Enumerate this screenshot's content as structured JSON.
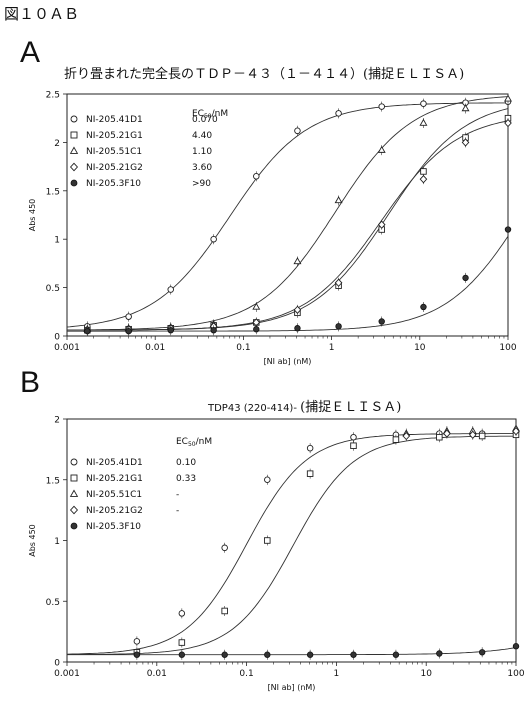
{
  "figure_title": "図１０ＡＢ",
  "chart_data": [
    {
      "panel": "A",
      "type": "scatter",
      "title": "折り畳まれた完全長のＴＤＰ－４３（１－４１４）(捕捉ＥＬＩＳＡ)",
      "xlabel": "[NI ab] (nM)",
      "ylabel": "Abs 450",
      "xscale": "log",
      "xlim": [
        0.001,
        100
      ],
      "ylim": [
        0,
        2.5
      ],
      "xticks": [
        "0.001",
        "0.01",
        "0.1",
        "1",
        "10",
        "100"
      ],
      "yticks": [
        "0",
        "0.5",
        "1",
        "1.5",
        "2",
        "2.5"
      ],
      "grid": false,
      "legend_position": "top-left",
      "legend_header": "EC50/nM",
      "series": [
        {
          "name": "NI-205.41D1",
          "ec50": "0.070",
          "marker": "circle",
          "x": [
            0.0017,
            0.005,
            0.015,
            0.046,
            0.14,
            0.41,
            1.2,
            3.7,
            11,
            33,
            100
          ],
          "y": [
            0.1,
            0.2,
            0.48,
            1.0,
            1.65,
            2.12,
            2.3,
            2.37,
            2.4,
            2.41,
            2.42
          ],
          "fit": {
            "bottom": 0.06,
            "top": 2.41,
            "ec50": 0.07,
            "hill": 1.0
          }
        },
        {
          "name": "NI-205.21G1",
          "ec50": "4.40",
          "marker": "square",
          "x": [
            0.0017,
            0.005,
            0.015,
            0.046,
            0.14,
            0.41,
            1.2,
            3.7,
            11,
            33,
            100
          ],
          "y": [
            0.06,
            0.07,
            0.08,
            0.11,
            0.14,
            0.24,
            0.52,
            1.1,
            1.7,
            2.05,
            2.25
          ],
          "fit": {
            "bottom": 0.06,
            "top": 2.45,
            "ec50": 4.4,
            "hill": 1.0
          }
        },
        {
          "name": "NI-205.51C1",
          "ec50": "1.10",
          "marker": "triangle",
          "x": [
            0.0017,
            0.005,
            0.015,
            0.046,
            0.14,
            0.41,
            1.2,
            3.7,
            11,
            33,
            100
          ],
          "y": [
            0.07,
            0.08,
            0.09,
            0.12,
            0.3,
            0.77,
            1.4,
            1.92,
            2.2,
            2.35,
            2.45
          ],
          "fit": {
            "bottom": 0.06,
            "top": 2.5,
            "ec50": 1.1,
            "hill": 1.0
          }
        },
        {
          "name": "NI-205.21G2",
          "ec50": "3.60",
          "marker": "diamond",
          "x": [
            0.0017,
            0.005,
            0.015,
            0.046,
            0.14,
            0.41,
            1.2,
            3.7,
            11,
            33,
            100
          ],
          "y": [
            0.06,
            0.07,
            0.08,
            0.1,
            0.14,
            0.27,
            0.55,
            1.15,
            1.62,
            2.0,
            2.2
          ],
          "fit": {
            "bottom": 0.06,
            "top": 2.3,
            "ec50": 3.6,
            "hill": 1.0
          }
        },
        {
          "name": "NI-205.3F10",
          "ec50": ">90",
          "marker": "filled-circle",
          "x": [
            0.0017,
            0.005,
            0.015,
            0.046,
            0.14,
            0.41,
            1.2,
            3.7,
            11,
            33,
            100
          ],
          "y": [
            0.05,
            0.05,
            0.06,
            0.06,
            0.07,
            0.08,
            0.1,
            0.15,
            0.3,
            0.6,
            1.1
          ],
          "fit": {
            "bottom": 0.05,
            "top": 2.5,
            "ec50": 150,
            "hill": 1.0
          }
        }
      ]
    },
    {
      "panel": "B",
      "type": "scatter",
      "title_small": "TDP43 (220-414)-",
      "title": "(捕捉ＥＬＩＳＡ)",
      "xlabel": "[NI ab] (nM)",
      "ylabel": "Abs 450",
      "xscale": "log",
      "xlim": [
        0.001,
        100
      ],
      "ylim": [
        0,
        2
      ],
      "xticks": [
        "0.001",
        "0.01",
        "0.1",
        "1",
        "10",
        "100"
      ],
      "yticks": [
        "0",
        "0.5",
        "1",
        "1.5",
        "2"
      ],
      "grid": false,
      "legend_position": "top-left",
      "legend_header": "EC50/nM",
      "series": [
        {
          "name": "NI-205.41D1",
          "ec50": "0.10",
          "marker": "circle",
          "x": [
            0.006,
            0.019,
            0.057,
            0.17,
            0.51,
            1.55,
            4.6,
            14,
            42,
            100
          ],
          "y": [
            0.17,
            0.4,
            0.94,
            1.5,
            1.76,
            1.85,
            1.87,
            1.88,
            1.88,
            1.89
          ],
          "fit": {
            "bottom": 0.06,
            "top": 1.88,
            "ec50": 0.1,
            "hill": 1.3
          }
        },
        {
          "name": "NI-205.21G1",
          "ec50": "0.33",
          "marker": "square",
          "x": [
            0.006,
            0.019,
            0.057,
            0.17,
            0.51,
            1.55,
            4.6,
            14,
            42,
            100
          ],
          "y": [
            0.08,
            0.16,
            0.42,
            1.0,
            1.55,
            1.78,
            1.83,
            1.85,
            1.86,
            1.87
          ],
          "fit": {
            "bottom": 0.06,
            "top": 1.86,
            "ec50": 0.33,
            "hill": 1.3
          }
        },
        {
          "name": "NI-205.51C1",
          "ec50": "-",
          "marker": "triangle",
          "x": [
            6,
            17,
            33,
            100
          ],
          "y": [
            1.88,
            1.9,
            1.9,
            1.92
          ],
          "fit": null
        },
        {
          "name": "NI-205.21G2",
          "ec50": "-",
          "marker": "diamond",
          "x": [
            6,
            17,
            33,
            100
          ],
          "y": [
            1.86,
            1.88,
            1.87,
            1.9
          ],
          "fit": null
        },
        {
          "name": "NI-205.3F10",
          "ec50": "",
          "marker": "filled-circle",
          "x": [
            0.006,
            0.019,
            0.057,
            0.17,
            0.51,
            1.55,
            4.6,
            14,
            42,
            100
          ],
          "y": [
            0.06,
            0.06,
            0.06,
            0.06,
            0.06,
            0.06,
            0.06,
            0.07,
            0.08,
            0.13
          ],
          "fit": {
            "bottom": 0.06,
            "top": 1.9,
            "ec50": 3000,
            "hill": 1.0
          }
        }
      ]
    }
  ]
}
